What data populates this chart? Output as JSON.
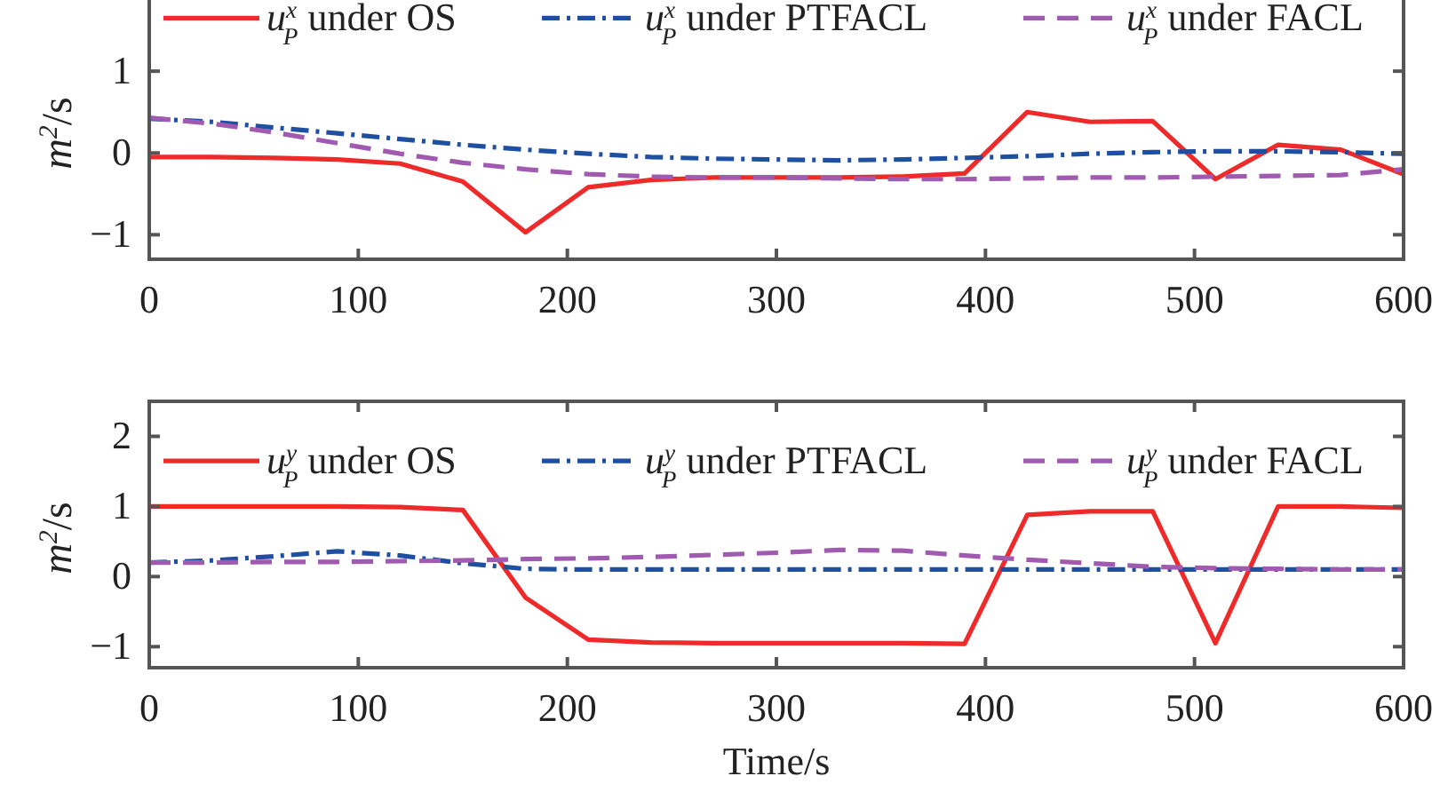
{
  "chart_data": [
    {
      "type": "line",
      "ylabel": "m$^{2}$/s",
      "x": [
        0,
        30,
        60,
        90,
        120,
        150,
        180,
        210,
        240,
        270,
        300,
        330,
        360,
        390,
        420,
        450,
        480,
        510,
        540,
        570,
        600
      ],
      "xlim": [
        0,
        600
      ],
      "xticks": [
        0,
        100,
        200,
        300,
        400,
        500,
        600
      ],
      "ylim": [
        -1.3,
        2.5
      ],
      "yticks": [
        -1,
        0,
        1
      ],
      "legend": "top",
      "grid": false,
      "series": [
        {
          "name": "u$^{x}$$_{P}$ under OS",
          "color": "#ee2a2a",
          "line_style": "solid",
          "values": [
            -0.05,
            -0.05,
            -0.06,
            -0.08,
            -0.13,
            -0.35,
            -0.97,
            -0.42,
            -0.33,
            -0.3,
            -0.3,
            -0.3,
            -0.29,
            -0.25,
            0.5,
            0.38,
            0.39,
            -0.32,
            0.1,
            0.04,
            -0.26
          ]
        },
        {
          "name": "u$^{x}$$_{P}$ under PTFACL",
          "color": "#1f4fa0",
          "line_style": "dotted",
          "values": [
            0.42,
            0.38,
            0.31,
            0.24,
            0.17,
            0.1,
            0.04,
            -0.01,
            -0.05,
            -0.07,
            -0.08,
            -0.09,
            -0.08,
            -0.06,
            -0.04,
            -0.01,
            0.01,
            0.02,
            0.02,
            0.01,
            -0.01
          ]
        },
        {
          "name": "u$^{x}$$_{P}$ under FACL",
          "color": "#a05ab0",
          "line_style": "dashed",
          "values": [
            0.43,
            0.36,
            0.25,
            0.12,
            -0.01,
            -0.12,
            -0.2,
            -0.26,
            -0.29,
            -0.3,
            -0.3,
            -0.31,
            -0.32,
            -0.32,
            -0.31,
            -0.3,
            -0.3,
            -0.29,
            -0.28,
            -0.27,
            -0.2
          ]
        }
      ]
    },
    {
      "type": "line",
      "xlabel": "Time/s",
      "ylabel": "m$^{2}$/s",
      "x": [
        0,
        30,
        60,
        90,
        120,
        150,
        180,
        210,
        240,
        270,
        300,
        330,
        360,
        390,
        420,
        450,
        480,
        510,
        540,
        570,
        600
      ],
      "xlim": [
        0,
        600
      ],
      "xticks": [
        0,
        100,
        200,
        300,
        400,
        500,
        600
      ],
      "ylim": [
        -1.3,
        2.5
      ],
      "yticks": [
        -1,
        0,
        1,
        2
      ],
      "legend": "top",
      "grid": false,
      "series": [
        {
          "name": "u$^{y}$$_{P}$ under OS",
          "color": "#ee2a2a",
          "line_style": "solid",
          "values": [
            1,
            1,
            1,
            1,
            0.99,
            0.95,
            -0.3,
            -0.9,
            -0.94,
            -0.95,
            -0.95,
            -0.95,
            -0.95,
            -0.96,
            0.88,
            0.93,
            0.93,
            -0.95,
            1,
            1,
            0.98
          ]
        },
        {
          "name": "u$^{y}$$_{P}$ under PTFACL",
          "color": "#1f4fa0",
          "line_style": "dotted",
          "values": [
            0.2,
            0.23,
            0.29,
            0.36,
            0.3,
            0.19,
            0.11,
            0.1,
            0.1,
            0.1,
            0.1,
            0.1,
            0.1,
            0.1,
            0.1,
            0.1,
            0.1,
            0.1,
            0.1,
            0.1,
            0.1
          ]
        },
        {
          "name": "u$^{y}$$_{P}$ under FACL",
          "color": "#a05ab0",
          "line_style": "dashed",
          "values": [
            0.2,
            0.2,
            0.21,
            0.21,
            0.22,
            0.23,
            0.25,
            0.26,
            0.28,
            0.31,
            0.34,
            0.38,
            0.37,
            0.3,
            0.24,
            0.19,
            0.14,
            0.12,
            0.11,
            0.1,
            0.1
          ]
        }
      ]
    }
  ]
}
